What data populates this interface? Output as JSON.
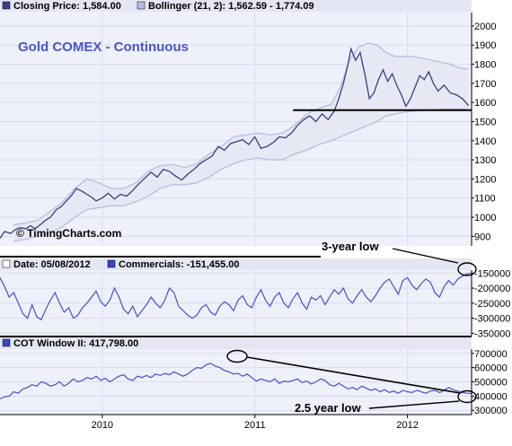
{
  "colors": {
    "panel_bg": "#eef0fa",
    "band_fill": "#e6e8f4",
    "series": "#4a52c8",
    "band_line": "#b8bce4",
    "grid": "#d9dcef",
    "title": "#4b56c8",
    "legend_header_bg": "#e4e6f3"
  },
  "legend": {
    "price_closing": "Closing Price: 1,584.00",
    "price_bollinger": "Bollinger (21, 2): 1,562.59 - 1,774.09",
    "date": "Date: 05/08/2012",
    "commercials": "Commercials: -151,455.00",
    "cot": "COT Window II: 417,798.00"
  },
  "watermark": "© TimingCharts.com",
  "chart_data": [
    {
      "type": "line",
      "title": "Gold COMEX - Continuous",
      "yticks": [
        900,
        1000,
        1100,
        1200,
        1300,
        1400,
        1500,
        1600,
        1700,
        1800,
        1900,
        2000
      ],
      "ytick_labels": [
        "900",
        "1000",
        "1100",
        "1200",
        "1300",
        "1400",
        "1500",
        "1600",
        "1700",
        "1800",
        "1900",
        "2000"
      ],
      "ylim": [
        850,
        2070
      ],
      "x_domain": [
        2009.33,
        2012.42
      ],
      "series": [
        {
          "role": "close",
          "x": [
            2009.33,
            2009.36,
            2009.4,
            2009.43,
            2009.46,
            2009.5,
            2009.53,
            2009.56,
            2009.6,
            2009.63,
            2009.66,
            2009.7,
            2009.73,
            2009.77,
            2009.8,
            2009.83,
            2009.87,
            2009.9,
            2009.93,
            2009.96,
            2010.0,
            2010.04,
            2010.08,
            2010.12,
            2010.16,
            2010.2,
            2010.24,
            2010.28,
            2010.32,
            2010.36,
            2010.4,
            2010.44,
            2010.48,
            2010.52,
            2010.56,
            2010.6,
            2010.64,
            2010.68,
            2010.72,
            2010.76,
            2010.8,
            2010.84,
            2010.88,
            2010.92,
            2010.96,
            2011.0,
            2011.04,
            2011.08,
            2011.12,
            2011.16,
            2011.2,
            2011.24,
            2011.28,
            2011.32,
            2011.36,
            2011.4,
            2011.44,
            2011.48,
            2011.52,
            2011.55,
            2011.58,
            2011.61,
            2011.63,
            2011.66,
            2011.69,
            2011.72,
            2011.75,
            2011.78,
            2011.81,
            2011.84,
            2011.87,
            2011.9,
            2011.93,
            2011.96,
            2011.99,
            2012.02,
            2012.05,
            2012.08,
            2012.11,
            2012.14,
            2012.17,
            2012.2,
            2012.24,
            2012.28,
            2012.32,
            2012.36,
            2012.4
          ],
          "y": [
            890,
            925,
            915,
            935,
            945,
            940,
            955,
            940,
            965,
            985,
            1000,
            1040,
            1055,
            1090,
            1115,
            1150,
            1135,
            1120,
            1105,
            1085,
            1100,
            1125,
            1095,
            1120,
            1110,
            1140,
            1175,
            1205,
            1235,
            1210,
            1250,
            1240,
            1215,
            1195,
            1225,
            1250,
            1280,
            1300,
            1320,
            1370,
            1350,
            1385,
            1395,
            1405,
            1380,
            1420,
            1360,
            1370,
            1390,
            1420,
            1415,
            1440,
            1480,
            1510,
            1530,
            1500,
            1540,
            1510,
            1555,
            1620,
            1700,
            1800,
            1880,
            1820,
            1860,
            1750,
            1620,
            1650,
            1720,
            1770,
            1710,
            1750,
            1690,
            1640,
            1580,
            1620,
            1680,
            1740,
            1720,
            1760,
            1700,
            1660,
            1690,
            1650,
            1640,
            1620,
            1584
          ]
        },
        {
          "role": "bollinger_upper",
          "x": [
            2009.42,
            2009.5,
            2009.58,
            2009.66,
            2009.74,
            2009.82,
            2009.9,
            2009.98,
            2010.06,
            2010.14,
            2010.22,
            2010.3,
            2010.38,
            2010.46,
            2010.54,
            2010.62,
            2010.7,
            2010.78,
            2010.86,
            2010.94,
            2011.02,
            2011.1,
            2011.18,
            2011.26,
            2011.34,
            2011.42,
            2011.5,
            2011.56,
            2011.62,
            2011.68,
            2011.74,
            2011.8,
            2011.86,
            2011.92,
            2011.98,
            2012.04,
            2012.1,
            2012.16,
            2012.22,
            2012.28,
            2012.34,
            2012.4
          ],
          "y": [
            960,
            970,
            985,
            1030,
            1080,
            1150,
            1200,
            1180,
            1150,
            1150,
            1180,
            1240,
            1270,
            1275,
            1260,
            1280,
            1330,
            1370,
            1420,
            1430,
            1440,
            1430,
            1440,
            1480,
            1540,
            1570,
            1590,
            1680,
            1820,
            1890,
            1910,
            1900,
            1860,
            1840,
            1840,
            1840,
            1830,
            1820,
            1810,
            1800,
            1780,
            1775
          ]
        },
        {
          "role": "bollinger_lower",
          "x": [
            2009.42,
            2009.5,
            2009.58,
            2009.66,
            2009.74,
            2009.82,
            2009.9,
            2009.98,
            2010.06,
            2010.14,
            2010.22,
            2010.3,
            2010.38,
            2010.46,
            2010.54,
            2010.62,
            2010.7,
            2010.78,
            2010.86,
            2010.94,
            2011.02,
            2011.1,
            2011.18,
            2011.26,
            2011.34,
            2011.42,
            2011.5,
            2011.56,
            2011.62,
            2011.68,
            2011.74,
            2011.8,
            2011.86,
            2011.92,
            2011.98,
            2012.04,
            2012.1,
            2012.16,
            2012.22,
            2012.28,
            2012.34,
            2012.4
          ],
          "y": [
            875,
            885,
            900,
            920,
            950,
            1000,
            1040,
            1050,
            1060,
            1060,
            1080,
            1110,
            1150,
            1170,
            1170,
            1180,
            1210,
            1250,
            1280,
            1300,
            1310,
            1300,
            1300,
            1330,
            1350,
            1380,
            1400,
            1420,
            1440,
            1460,
            1480,
            1500,
            1530,
            1540,
            1550,
            1555,
            1560,
            1560,
            1565,
            1565,
            1565,
            1562
          ]
        }
      ],
      "support_line": {
        "x": [
          2011.25,
          2012.42
        ],
        "y": [
          1560,
          1560
        ]
      }
    },
    {
      "type": "line",
      "yticks": [
        -350000,
        -300000,
        -250000,
        -200000,
        -150000
      ],
      "ytick_labels": [
        "-350000",
        "-300000",
        "-250000",
        "-200000",
        "-150000"
      ],
      "ylim": [
        -358000,
        -140000
      ],
      "x_domain": [
        2009.33,
        2012.42
      ],
      "series": [
        {
          "name": "Commercials",
          "x": [
            2009.33,
            2009.36,
            2009.39,
            2009.42,
            2009.45,
            2009.48,
            2009.51,
            2009.54,
            2009.57,
            2009.6,
            2009.63,
            2009.66,
            2009.69,
            2009.72,
            2009.75,
            2009.78,
            2009.81,
            2009.84,
            2009.87,
            2009.9,
            2009.93,
            2009.96,
            2009.99,
            2010.02,
            2010.05,
            2010.08,
            2010.11,
            2010.14,
            2010.17,
            2010.2,
            2010.23,
            2010.26,
            2010.29,
            2010.32,
            2010.35,
            2010.38,
            2010.41,
            2010.44,
            2010.47,
            2010.5,
            2010.53,
            2010.56,
            2010.59,
            2010.62,
            2010.65,
            2010.68,
            2010.71,
            2010.74,
            2010.77,
            2010.8,
            2010.83,
            2010.86,
            2010.89,
            2010.92,
            2010.95,
            2010.98,
            2011.01,
            2011.04,
            2011.07,
            2011.1,
            2011.13,
            2011.16,
            2011.19,
            2011.22,
            2011.25,
            2011.28,
            2011.31,
            2011.34,
            2011.37,
            2011.4,
            2011.43,
            2011.46,
            2011.49,
            2011.52,
            2011.55,
            2011.58,
            2011.61,
            2011.64,
            2011.67,
            2011.7,
            2011.73,
            2011.76,
            2011.79,
            2011.82,
            2011.85,
            2011.88,
            2011.91,
            2011.94,
            2011.97,
            2012.0,
            2012.03,
            2012.06,
            2012.09,
            2012.12,
            2012.15,
            2012.18,
            2012.21,
            2012.24,
            2012.27,
            2012.3,
            2012.33,
            2012.36,
            2012.39,
            2012.42
          ],
          "y": [
            -165000,
            -195000,
            -230000,
            -215000,
            -250000,
            -285000,
            -300000,
            -255000,
            -295000,
            -305000,
            -270000,
            -240000,
            -215000,
            -250000,
            -280000,
            -265000,
            -300000,
            -290000,
            -265000,
            -250000,
            -230000,
            -210000,
            -245000,
            -260000,
            -240000,
            -200000,
            -230000,
            -270000,
            -285000,
            -260000,
            -295000,
            -275000,
            -255000,
            -230000,
            -250000,
            -265000,
            -240000,
            -200000,
            -215000,
            -260000,
            -275000,
            -290000,
            -300000,
            -290000,
            -265000,
            -255000,
            -280000,
            -290000,
            -260000,
            -245000,
            -255000,
            -275000,
            -240000,
            -225000,
            -255000,
            -265000,
            -230000,
            -205000,
            -240000,
            -260000,
            -230000,
            -215000,
            -250000,
            -265000,
            -235000,
            -215000,
            -250000,
            -270000,
            -230000,
            -240000,
            -225000,
            -255000,
            -230000,
            -205000,
            -220000,
            -200000,
            -235000,
            -250000,
            -225000,
            -205000,
            -230000,
            -245000,
            -225000,
            -200000,
            -180000,
            -170000,
            -195000,
            -220000,
            -175000,
            -165000,
            -190000,
            -205000,
            -185000,
            -170000,
            -180000,
            -215000,
            -230000,
            -195000,
            -175000,
            -190000,
            -170000,
            -160000,
            -152000,
            -151455
          ]
        }
      ]
    },
    {
      "type": "line",
      "yticks": [
        300000,
        400000,
        500000,
        600000,
        700000
      ],
      "ytick_labels": [
        "300000",
        "400000",
        "500000",
        "600000",
        "700000"
      ],
      "ylim": [
        270000,
        730000
      ],
      "x_domain": [
        2009.33,
        2012.42
      ],
      "series": [
        {
          "name": "COT Window II",
          "x": [
            2009.33,
            2009.36,
            2009.39,
            2009.42,
            2009.45,
            2009.48,
            2009.51,
            2009.54,
            2009.57,
            2009.6,
            2009.63,
            2009.66,
            2009.69,
            2009.72,
            2009.75,
            2009.78,
            2009.81,
            2009.84,
            2009.87,
            2009.9,
            2009.93,
            2009.96,
            2009.99,
            2010.02,
            2010.05,
            2010.08,
            2010.11,
            2010.14,
            2010.17,
            2010.2,
            2010.23,
            2010.26,
            2010.29,
            2010.32,
            2010.35,
            2010.38,
            2010.41,
            2010.44,
            2010.47,
            2010.5,
            2010.53,
            2010.56,
            2010.59,
            2010.62,
            2010.65,
            2010.68,
            2010.71,
            2010.74,
            2010.77,
            2010.8,
            2010.83,
            2010.86,
            2010.89,
            2010.92,
            2010.95,
            2010.98,
            2011.01,
            2011.04,
            2011.07,
            2011.1,
            2011.13,
            2011.16,
            2011.19,
            2011.22,
            2011.25,
            2011.28,
            2011.31,
            2011.34,
            2011.37,
            2011.4,
            2011.43,
            2011.46,
            2011.49,
            2011.52,
            2011.55,
            2011.58,
            2011.61,
            2011.64,
            2011.67,
            2011.7,
            2011.73,
            2011.76,
            2011.79,
            2011.82,
            2011.85,
            2011.88,
            2011.91,
            2011.94,
            2011.97,
            2012.0,
            2012.03,
            2012.06,
            2012.09,
            2012.12,
            2012.15,
            2012.18,
            2012.21,
            2012.24,
            2012.27,
            2012.3,
            2012.33,
            2012.36,
            2012.39,
            2012.42
          ],
          "y": [
            380000,
            395000,
            400000,
            430000,
            420000,
            450000,
            460000,
            480000,
            470000,
            500000,
            490000,
            470000,
            480000,
            500000,
            470000,
            490000,
            520000,
            500000,
            510000,
            530000,
            520000,
            540000,
            510000,
            525000,
            500000,
            520000,
            540000,
            550000,
            520000,
            510000,
            540000,
            530000,
            545000,
            530000,
            555000,
            545000,
            560000,
            550000,
            570000,
            555000,
            540000,
            555000,
            580000,
            600000,
            595000,
            620000,
            630000,
            610000,
            600000,
            580000,
            570000,
            555000,
            560000,
            540000,
            555000,
            530000,
            505000,
            520000,
            510000,
            500000,
            520000,
            490000,
            505000,
            500000,
            510000,
            520000,
            495000,
            505000,
            485000,
            500000,
            520000,
            510000,
            480000,
            470000,
            490000,
            470000,
            450000,
            460000,
            445000,
            470000,
            455000,
            440000,
            450000,
            430000,
            445000,
            425000,
            435000,
            420000,
            440000,
            430000,
            425000,
            440000,
            430000,
            420000,
            435000,
            440000,
            425000,
            440000,
            460000,
            445000,
            435000,
            425000,
            420000,
            417798
          ]
        }
      ]
    }
  ],
  "x_axis": {
    "ticks": [
      2010,
      2011,
      2012
    ],
    "labels": [
      "2010",
      "2011",
      "2012"
    ]
  },
  "annotations": {
    "low_3yr": "3-year low",
    "low_2_5yr": "2.5 year low"
  }
}
